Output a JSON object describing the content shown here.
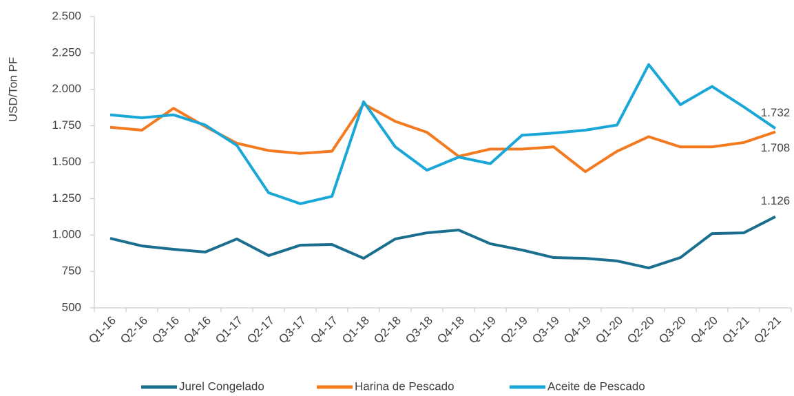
{
  "chart_data": {
    "type": "line",
    "y_label": "USD/Ton PF",
    "categories": [
      "Q1-16",
      "Q2-16",
      "Q3-16",
      "Q4-16",
      "Q1-17",
      "Q2-17",
      "Q3-17",
      "Q4-17",
      "Q1-18",
      "Q2-18",
      "Q3-18",
      "Q4-18",
      "Q1-19",
      "Q2-19",
      "Q3-19",
      "Q4-19",
      "Q1-20",
      "Q2-20",
      "Q3-20",
      "Q4-20",
      "Q1-21",
      "Q2-21"
    ],
    "series": [
      {
        "name": "Jurel Congelado",
        "color": "#1a6e8e",
        "values": [
          977,
          925,
          902,
          883,
          973,
          859,
          930,
          935,
          840,
          973,
          1015,
          1034,
          940,
          897,
          845,
          840,
          822,
          774,
          845,
          1010,
          1015,
          1126
        ],
        "value_labels": [
          null,
          null,
          null,
          null,
          null,
          null,
          null,
          null,
          null,
          null,
          null,
          null,
          null,
          null,
          null,
          null,
          null,
          null,
          null,
          null,
          null,
          "1.126"
        ]
      },
      {
        "name": "Harina de Pescado",
        "color": "#f47a20",
        "values": [
          1740,
          1720,
          1870,
          1745,
          1630,
          1580,
          1560,
          1575,
          1900,
          1780,
          1705,
          1540,
          1590,
          1590,
          1605,
          1435,
          1575,
          1675,
          1605,
          1605,
          1635,
          1708
        ],
        "value_labels": [
          null,
          null,
          null,
          null,
          null,
          null,
          null,
          null,
          null,
          null,
          null,
          null,
          null,
          null,
          null,
          null,
          null,
          null,
          null,
          null,
          null,
          "1.708"
        ]
      },
      {
        "name": "Aceite de Pescado",
        "color": "#1aa7d8",
        "values": [
          1825,
          1805,
          1825,
          1755,
          1615,
          1290,
          1215,
          1265,
          1915,
          1605,
          1445,
          1535,
          1490,
          1685,
          1700,
          1720,
          1755,
          2170,
          1895,
          2020,
          1880,
          1732
        ],
        "value_labels": [
          null,
          null,
          null,
          null,
          null,
          null,
          null,
          null,
          null,
          null,
          null,
          null,
          null,
          null,
          null,
          null,
          null,
          null,
          null,
          null,
          null,
          "1.732"
        ]
      }
    ],
    "ylim": [
      500,
      2500
    ],
    "yticks": [
      500,
      750,
      {
        "value": 1000,
        "label": "1.000"
      },
      {
        "value": 1250,
        "label": "1.250"
      },
      {
        "value": 1500,
        "label": "1.500"
      },
      {
        "value": 1750,
        "label": "1.750"
      },
      {
        "value": 2000,
        "label": "2.000"
      },
      {
        "value": 2250,
        "label": "2.250"
      },
      {
        "value": 2500,
        "label": "2.500"
      }
    ],
    "legend": "bottom"
  }
}
